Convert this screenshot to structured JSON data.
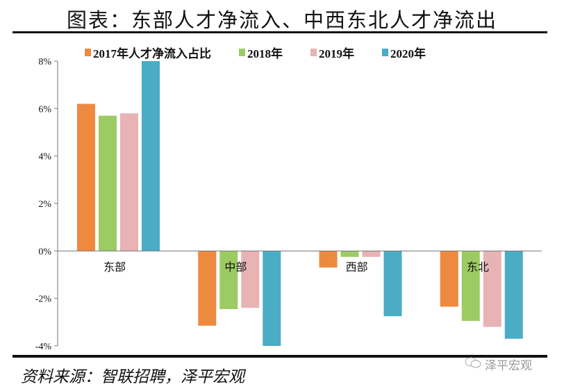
{
  "title": "图表：东部人才净流入、中西东北人才净流出",
  "source": "资料来源：智联招聘，泽平宏观",
  "watermark": "泽平宏观",
  "chart_data": {
    "type": "bar",
    "categories": [
      "东部",
      "中部",
      "西部",
      "东北"
    ],
    "series": [
      {
        "name": "2017年人才净流入占比",
        "color": "#ED8A3F",
        "values": [
          6.2,
          -3.15,
          -0.7,
          -2.35
        ]
      },
      {
        "name": "2018年",
        "color": "#9CCB63",
        "values": [
          5.7,
          -2.45,
          -0.25,
          -2.95
        ]
      },
      {
        "name": "2019年",
        "color": "#E7B3B5",
        "values": [
          5.8,
          -2.4,
          -0.25,
          -3.2
        ]
      },
      {
        "name": "2020年",
        "color": "#4AACC5",
        "values": [
          8.0,
          -4.0,
          -2.75,
          -3.7
        ]
      }
    ],
    "ylim": [
      -4,
      8
    ],
    "yticks": [
      "-4%",
      "-2%",
      "0%",
      "2%",
      "4%",
      "6%",
      "8%"
    ],
    "ytick_values": [
      -4,
      -2,
      0,
      2,
      4,
      6,
      8
    ],
    "legend": "top",
    "grid": false
  }
}
